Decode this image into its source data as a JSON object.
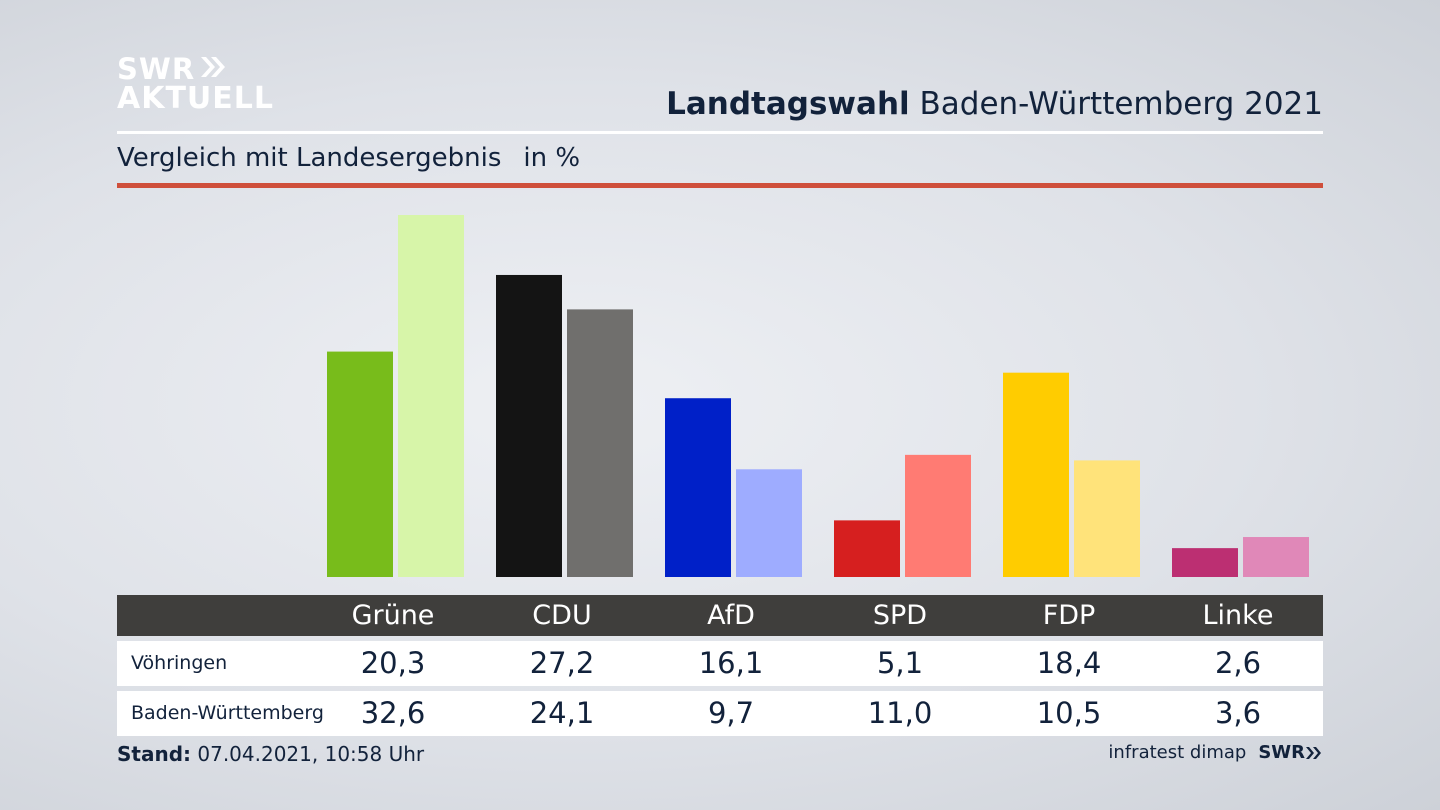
{
  "logo": {
    "line1": "SWR",
    "line2": "AKTUELL"
  },
  "title_bold": "Landtagswahl",
  "title_rest": " Baden-Württemberg 2021",
  "subtitle": "Vergleich mit Landesergebnis",
  "unit": "in %",
  "footer": {
    "stand_label": "Stand:",
    "stand_value": " 07.04.2021, 10:58 Uhr",
    "source": "infratest dimap",
    "brand": "SWR"
  },
  "table": {
    "headers": [
      "Grüne",
      "CDU",
      "AfD",
      "SPD",
      "FDP",
      "Linke"
    ],
    "rows": [
      {
        "label": "Vöhringen",
        "values": [
          "20,3",
          "27,2",
          "16,1",
          "5,1",
          "18,4",
          "2,6"
        ]
      },
      {
        "label": "Baden-Württemberg",
        "values": [
          "32,6",
          "24,1",
          "9,7",
          "11,0",
          "10,5",
          "3,6"
        ]
      }
    ]
  },
  "chart_data": {
    "type": "bar",
    "title": "Landtagswahl Baden-Württemberg 2021",
    "subtitle": "Vergleich mit Landesergebnis",
    "unit": "in %",
    "categories": [
      "Grüne",
      "CDU",
      "AfD",
      "SPD",
      "FDP",
      "Linke"
    ],
    "series": [
      {
        "name": "Vöhringen",
        "values": [
          20.3,
          27.2,
          16.1,
          5.1,
          18.4,
          2.6
        ],
        "colors": [
          "#78bc1b",
          "#141414",
          "#0020c8",
          "#d61f1f",
          "#ffcc00",
          "#bc2f72"
        ]
      },
      {
        "name": "Baden-Württemberg",
        "values": [
          32.6,
          24.1,
          9.7,
          11.0,
          10.5,
          3.6
        ],
        "colors": [
          "#d7f5a9",
          "#706f6d",
          "#9eacff",
          "#ff7b73",
          "#ffe37a",
          "#e088b8"
        ]
      }
    ],
    "ylim": [
      0,
      32.6
    ],
    "grid": false,
    "legend": "table-below"
  },
  "colors": {
    "accent_rule": "#cf4f3b",
    "text": "#12223b",
    "table_header_bg": "#3f3e3c"
  }
}
